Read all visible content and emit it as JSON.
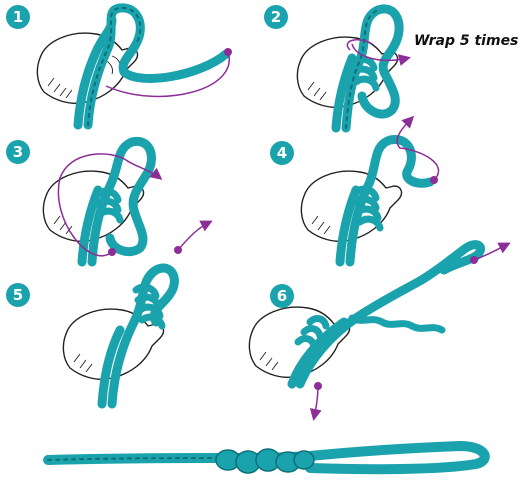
{
  "colors": {
    "rope": "#1aa3ad",
    "rope_shade": "#0d6f78",
    "guide": "#8d2d97",
    "badge": "#1aa3ad"
  },
  "steps": [
    {
      "number": "1"
    },
    {
      "number": "2",
      "note": "Wrap 5 times"
    },
    {
      "number": "3"
    },
    {
      "number": "4"
    },
    {
      "number": "5"
    },
    {
      "number": "6"
    }
  ],
  "icons": [
    "hand-illustration",
    "rope-strand",
    "guide-arrow",
    "finished-knot"
  ]
}
